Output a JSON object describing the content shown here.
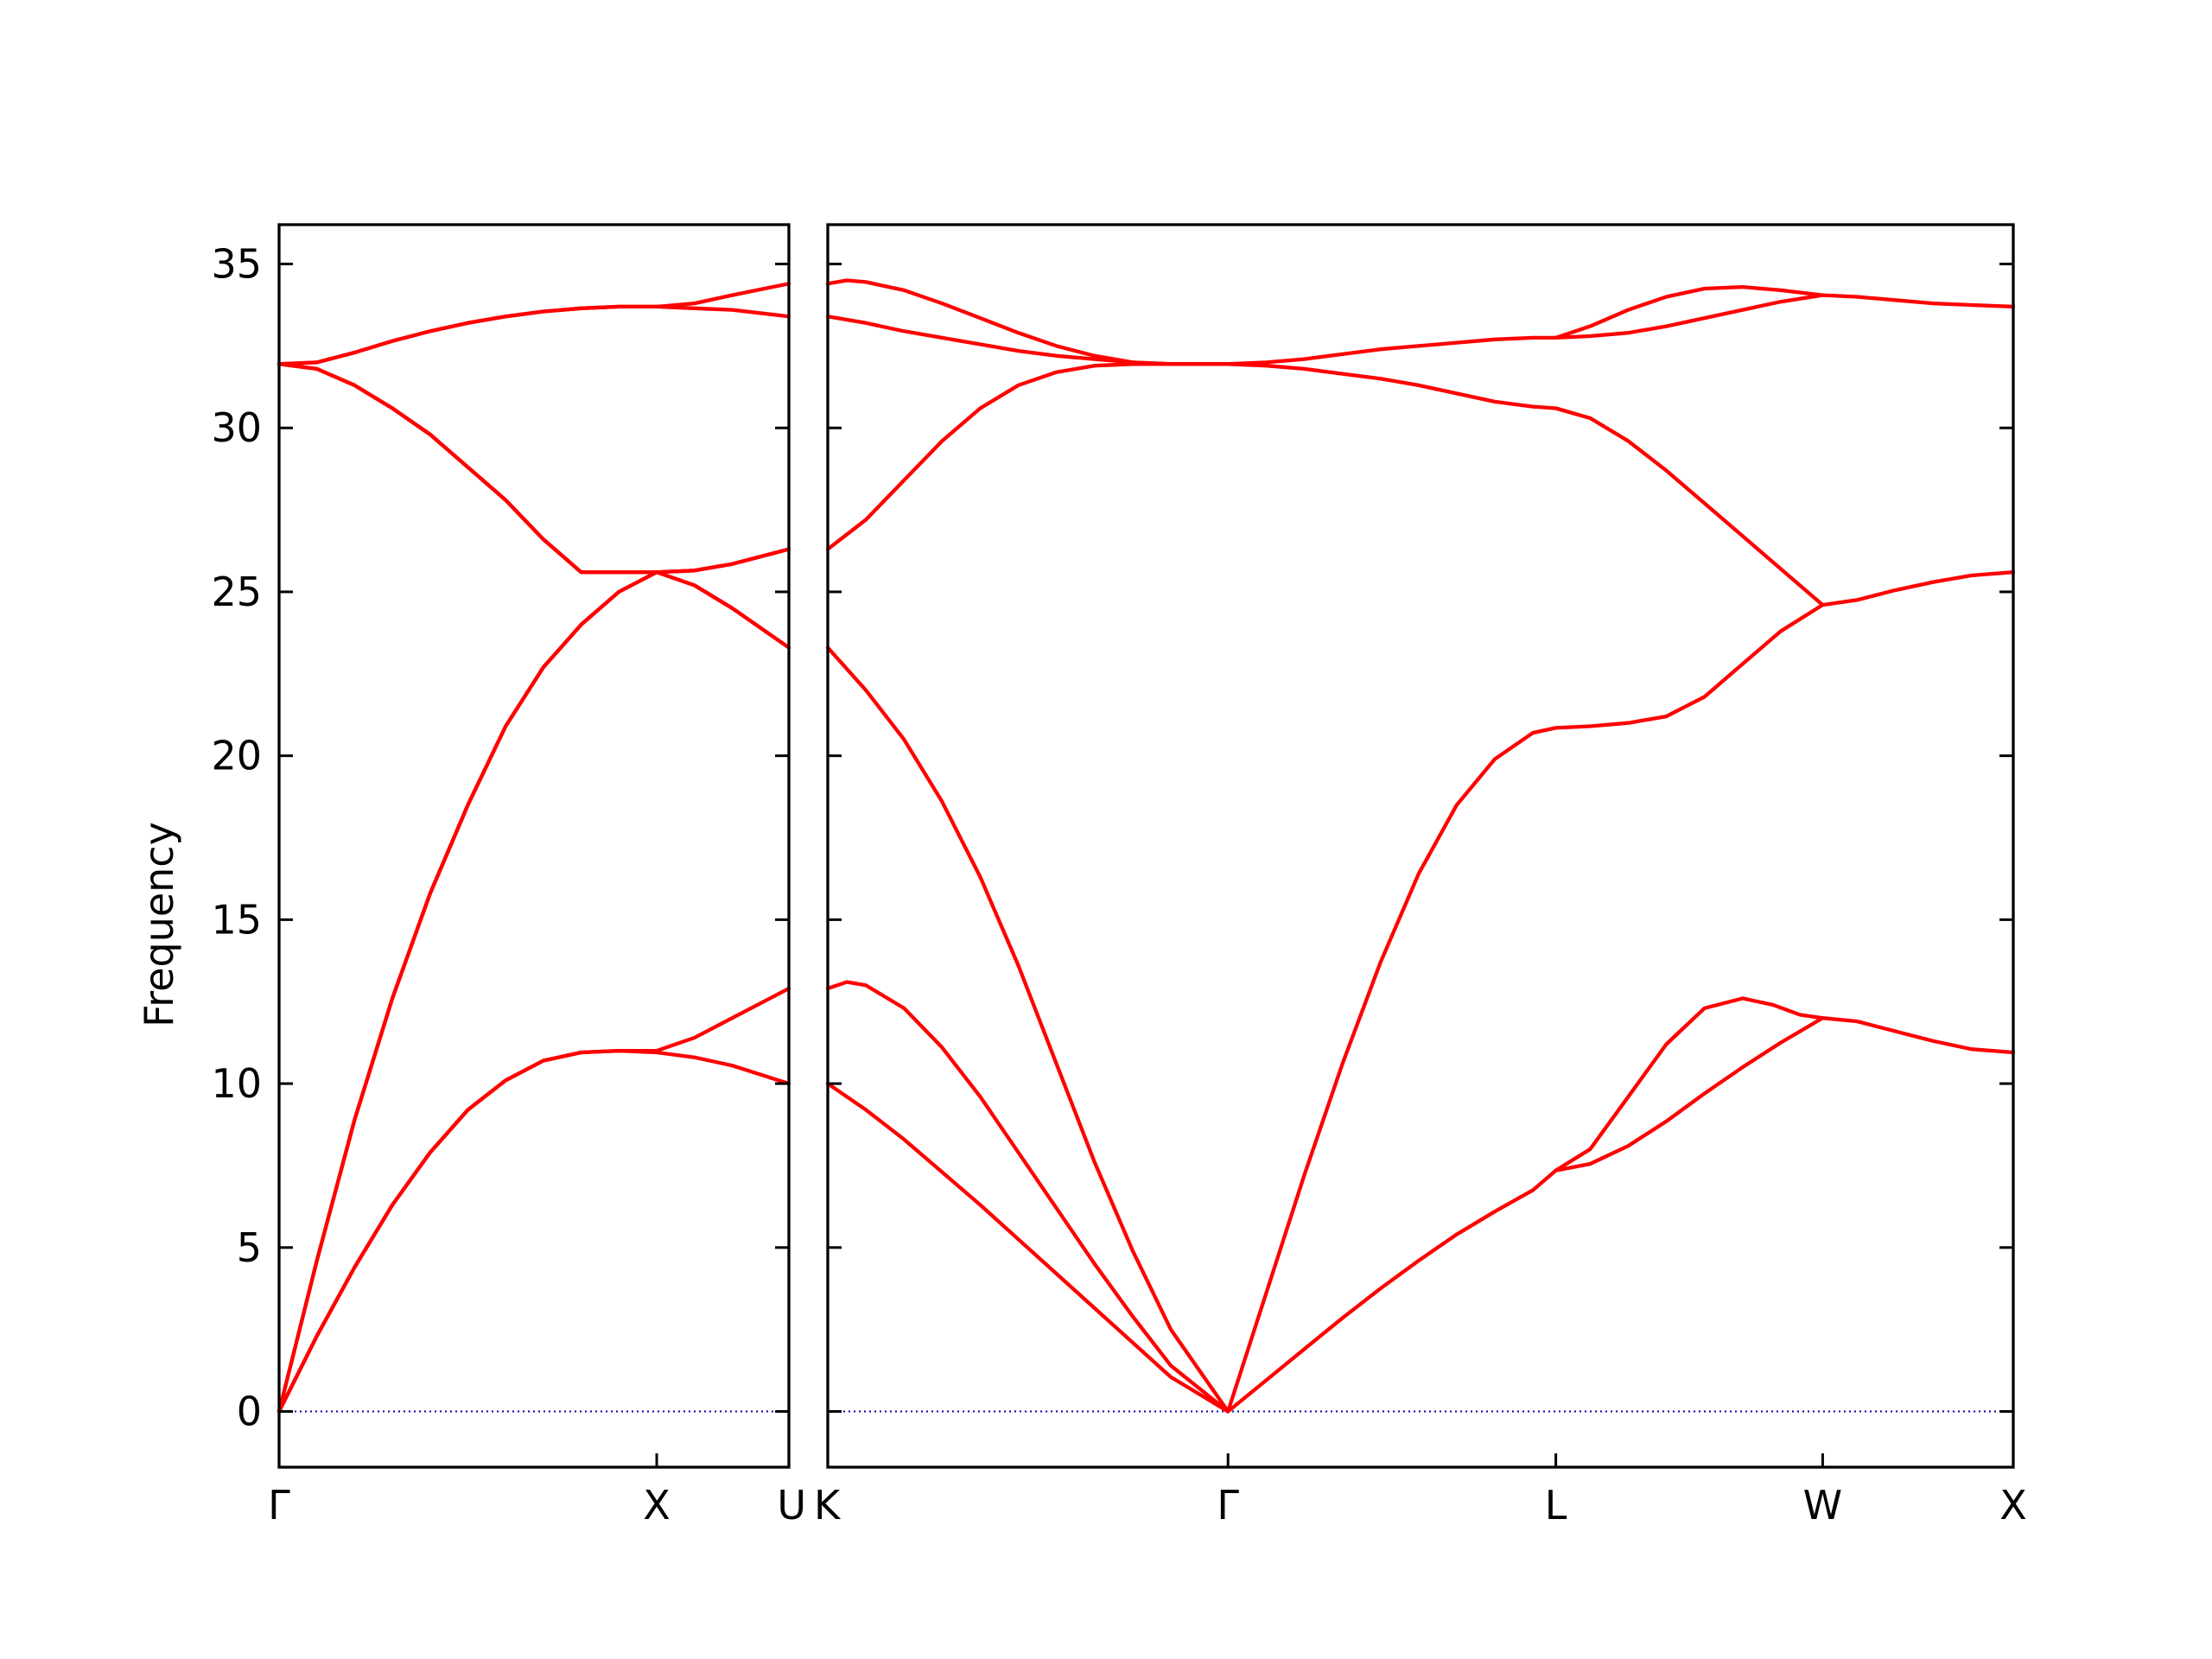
{
  "chart_data": {
    "type": "line",
    "ylabel": "Frequency",
    "ylim": [
      -1.7,
      36.2
    ],
    "yticks": [
      0,
      5,
      10,
      15,
      20,
      25,
      30,
      35
    ],
    "grid": false,
    "colors": {
      "bands": "#ff0000",
      "zero_line": "#0000aa",
      "axes": "#000000"
    },
    "panels": [
      {
        "x_range": [
          0,
          1.35
        ],
        "xticks": [
          {
            "x": 0,
            "label": "Γ"
          },
          {
            "x": 1.0,
            "label": "X"
          },
          {
            "x": 1.35,
            "label": "U"
          }
        ],
        "series": [
          {
            "x": [
              0,
              0.1,
              0.2,
              0.3,
              0.4,
              0.5,
              0.6,
              0.7,
              0.8,
              0.9,
              1.0,
              1.1,
              1.2,
              1.35
            ],
            "y": [
              0,
              2.3,
              4.4,
              6.3,
              7.9,
              9.2,
              10.1,
              10.7,
              10.95,
              11.0,
              10.95,
              10.8,
              10.55,
              10.0
            ]
          },
          {
            "x": [
              0,
              0.1,
              0.2,
              0.3,
              0.4,
              0.5,
              0.6,
              0.7,
              0.8,
              0.9,
              1.0,
              1.1,
              1.2,
              1.35
            ],
            "y": [
              0,
              2.3,
              4.4,
              6.3,
              7.9,
              9.2,
              10.1,
              10.7,
              10.95,
              11.0,
              11.0,
              11.4,
              12.0,
              12.9
            ]
          },
          {
            "x": [
              0,
              0.1,
              0.2,
              0.3,
              0.4,
              0.5,
              0.6,
              0.7,
              0.8,
              0.9,
              1.0,
              1.1,
              1.2,
              1.35
            ],
            "y": [
              0,
              4.6,
              8.9,
              12.6,
              15.8,
              18.5,
              20.9,
              22.7,
              24.0,
              25.0,
              25.6,
              25.2,
              24.5,
              23.3
            ]
          },
          {
            "x": [
              0,
              0.1,
              0.2,
              0.3,
              0.4,
              0.5,
              0.6,
              0.7,
              0.8,
              0.9,
              1.0,
              1.1,
              1.2,
              1.35
            ],
            "y": [
              0,
              4.6,
              8.9,
              12.6,
              15.8,
              18.5,
              20.9,
              22.7,
              24.0,
              25.0,
              25.6,
              25.65,
              25.85,
              26.3
            ]
          },
          {
            "x": [
              0,
              0.1,
              0.2,
              0.3,
              0.4,
              0.5,
              0.6,
              0.7,
              0.8,
              0.9,
              1.0,
              1.1,
              1.2,
              1.35
            ],
            "y": [
              31.95,
              31.8,
              31.3,
              30.6,
              29.8,
              28.8,
              27.8,
              26.6,
              25.6,
              25.6,
              25.6,
              25.65,
              25.85,
              26.3
            ]
          },
          {
            "x": [
              0,
              0.1,
              0.2,
              0.3,
              0.4,
              0.5,
              0.6,
              0.7,
              0.8,
              0.9,
              1.0,
              1.1,
              1.2,
              1.35
            ],
            "y": [
              31.95,
              31.8,
              31.3,
              30.6,
              29.8,
              28.8,
              27.8,
              26.6,
              25.6,
              25.6,
              25.6,
              25.2,
              24.5,
              23.3
            ]
          },
          {
            "x": [
              0,
              0.1,
              0.2,
              0.3,
              0.4,
              0.5,
              0.6,
              0.7,
              0.8,
              0.9,
              1.0,
              1.1,
              1.2,
              1.35
            ],
            "y": [
              31.95,
              32.0,
              32.3,
              32.65,
              32.95,
              33.2,
              33.4,
              33.55,
              33.65,
              33.7,
              33.7,
              33.65,
              33.6,
              33.4
            ]
          },
          {
            "x": [
              0,
              0.1,
              0.2,
              0.3,
              0.4,
              0.5,
              0.6,
              0.7,
              0.8,
              0.9,
              1.0,
              1.1,
              1.2,
              1.35
            ],
            "y": [
              31.95,
              32.0,
              32.3,
              32.65,
              32.95,
              33.2,
              33.4,
              33.55,
              33.65,
              33.7,
              33.7,
              33.8,
              34.05,
              34.4
            ]
          }
        ]
      },
      {
        "x_range": [
          1.35,
          4.46
        ],
        "xticks": [
          {
            "x": 1.35,
            "label": "K"
          },
          {
            "x": 2.4,
            "label": "Γ"
          },
          {
            "x": 3.26,
            "label": "L"
          },
          {
            "x": 3.96,
            "label": "W"
          },
          {
            "x": 4.46,
            "label": "X"
          }
        ],
        "series": [
          {
            "x": [
              1.35,
              1.45,
              1.55,
              1.65,
              1.75,
              1.85,
              1.95,
              2.05,
              2.15,
              2.25,
              2.4
            ],
            "y": [
              10.0,
              9.2,
              8.3,
              7.3,
              6.3,
              5.25,
              4.2,
              3.15,
              2.1,
              1.05,
              0
            ]
          },
          {
            "x": [
              1.35,
              1.4,
              1.45,
              1.55,
              1.65,
              1.75,
              1.85,
              1.95,
              2.05,
              2.15,
              2.25,
              2.4
            ],
            "y": [
              12.9,
              13.1,
              13.0,
              12.3,
              11.1,
              9.6,
              7.9,
              6.2,
              4.5,
              2.9,
              1.4,
              0
            ]
          },
          {
            "x": [
              1.35,
              1.45,
              1.55,
              1.65,
              1.75,
              1.85,
              1.95,
              2.05,
              2.15,
              2.25,
              2.4
            ],
            "y": [
              23.3,
              22.0,
              20.5,
              18.6,
              16.3,
              13.6,
              10.6,
              7.6,
              4.9,
              2.5,
              0
            ]
          },
          {
            "x": [
              1.35,
              1.45,
              1.55,
              1.65,
              1.75,
              1.85,
              1.95,
              2.05,
              2.15,
              2.25,
              2.4
            ],
            "y": [
              26.3,
              27.2,
              28.4,
              29.6,
              30.6,
              31.3,
              31.7,
              31.9,
              31.95,
              31.95,
              31.95
            ]
          },
          {
            "x": [
              1.35,
              1.45,
              1.55,
              1.65,
              1.75,
              1.85,
              1.95,
              2.05,
              2.15,
              2.25,
              2.4
            ],
            "y": [
              33.4,
              33.2,
              32.95,
              32.75,
              32.55,
              32.35,
              32.2,
              32.1,
              32.0,
              31.95,
              31.95
            ]
          },
          {
            "x": [
              1.35,
              1.4,
              1.45,
              1.55,
              1.65,
              1.75,
              1.85,
              1.95,
              2.05,
              2.15,
              2.25,
              2.4
            ],
            "y": [
              34.4,
              34.5,
              34.45,
              34.2,
              33.8,
              33.35,
              32.9,
              32.5,
              32.2,
              32.0,
              31.95,
              31.95
            ]
          },
          {
            "x": [
              2.4,
              2.5,
              2.6,
              2.7,
              2.8,
              2.9,
              3.0,
              3.1,
              3.2,
              3.26
            ],
            "y": [
              0,
              0.95,
              1.9,
              2.85,
              3.75,
              4.6,
              5.4,
              6.1,
              6.75,
              7.35
            ]
          },
          {
            "x": [
              2.4,
              2.5,
              2.6,
              2.7,
              2.8,
              2.9,
              3.0,
              3.1,
              3.2,
              3.26
            ],
            "y": [
              0,
              3.6,
              7.2,
              10.6,
              13.7,
              16.4,
              18.5,
              19.9,
              20.7,
              20.85
            ]
          },
          {
            "x": [
              2.4,
              2.5,
              2.6,
              2.7,
              2.8,
              2.9,
              3.0,
              3.1,
              3.2,
              3.26
            ],
            "y": [
              31.95,
              31.9,
              31.8,
              31.65,
              31.5,
              31.3,
              31.05,
              30.8,
              30.65,
              30.6
            ]
          },
          {
            "x": [
              2.4,
              2.5,
              2.6,
              2.7,
              2.8,
              2.9,
              3.0,
              3.1,
              3.2,
              3.26
            ],
            "y": [
              31.95,
              32.0,
              32.1,
              32.25,
              32.4,
              32.5,
              32.6,
              32.7,
              32.75,
              32.75
            ]
          },
          {
            "x": [
              3.26,
              3.35,
              3.45,
              3.55,
              3.65,
              3.75,
              3.85,
              3.96
            ],
            "y": [
              7.35,
              7.55,
              8.1,
              8.85,
              9.7,
              10.5,
              11.25,
              12.0
            ]
          },
          {
            "x": [
              3.26,
              3.35,
              3.45,
              3.55,
              3.65,
              3.75,
              3.83,
              3.9,
              3.96
            ],
            "y": [
              7.35,
              8.0,
              9.6,
              11.2,
              12.3,
              12.6,
              12.4,
              12.1,
              12.0
            ]
          },
          {
            "x": [
              3.26,
              3.35,
              3.45,
              3.55,
              3.65,
              3.75,
              3.85,
              3.96
            ],
            "y": [
              20.85,
              20.9,
              21.0,
              21.2,
              21.8,
              22.8,
              23.8,
              24.6
            ]
          },
          {
            "x": [
              3.26,
              3.35,
              3.45,
              3.55,
              3.65,
              3.75,
              3.85,
              3.96
            ],
            "y": [
              30.6,
              30.3,
              29.6,
              28.7,
              27.7,
              26.7,
              25.7,
              24.6
            ]
          },
          {
            "x": [
              3.26,
              3.35,
              3.45,
              3.55,
              3.65,
              3.75,
              3.85,
              3.96
            ],
            "y": [
              32.75,
              32.8,
              32.9,
              33.1,
              33.35,
              33.6,
              33.85,
              34.05
            ]
          },
          {
            "x": [
              3.26,
              3.35,
              3.45,
              3.55,
              3.65,
              3.75,
              3.85,
              3.96
            ],
            "y": [
              32.75,
              33.1,
              33.6,
              34.0,
              34.25,
              34.3,
              34.2,
              34.05
            ]
          },
          {
            "x": [
              3.96,
              4.05,
              4.15,
              4.25,
              4.35,
              4.46
            ],
            "y": [
              12.0,
              11.9,
              11.6,
              11.3,
              11.05,
              10.95
            ]
          },
          {
            "x": [
              3.96,
              4.05,
              4.15,
              4.25,
              4.35,
              4.46
            ],
            "y": [
              24.6,
              24.75,
              25.05,
              25.3,
              25.5,
              25.6
            ]
          },
          {
            "x": [
              3.96,
              4.05,
              4.15,
              4.25,
              4.35,
              4.46
            ],
            "y": [
              34.05,
              34.0,
              33.9,
              33.8,
              33.75,
              33.7
            ]
          }
        ]
      }
    ]
  }
}
